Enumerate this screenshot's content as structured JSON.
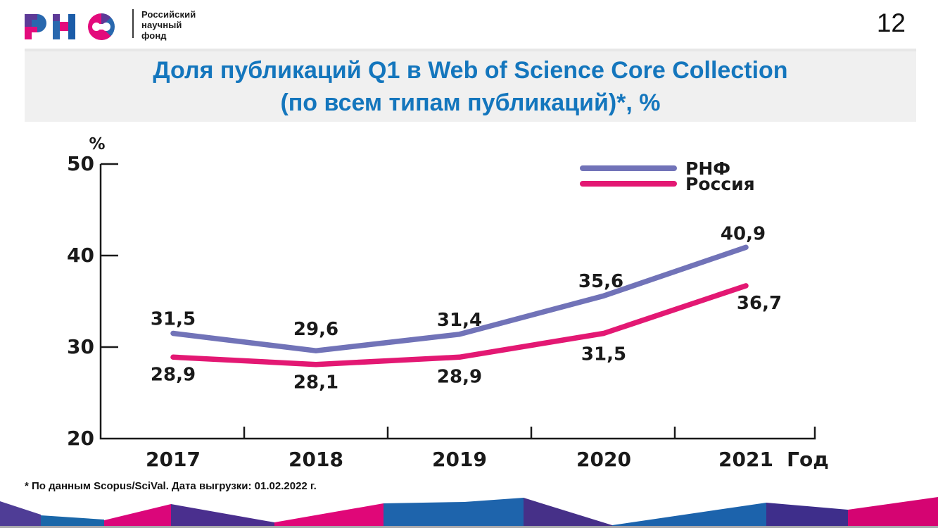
{
  "page": {
    "number": "12"
  },
  "logo": {
    "mark": "РНФ",
    "org_lines": [
      "Российский",
      "научный",
      "фонд"
    ],
    "colors": {
      "pink": "#E30B7C",
      "blue": "#2968AE",
      "purple": "#5D3A97"
    }
  },
  "title": {
    "line1": "Доля публикаций Q1 в Web of Science Core Collection",
    "line2": "(по всем типам публикаций)*, %",
    "color": "#1476BD",
    "band_background": "#F0F0F0"
  },
  "footnote": "* По данным Scopus/SciVal. Дата выгрузки: 01.02.2022 г.",
  "chart_data": {
    "type": "line",
    "title": "Доля публикаций Q1 в Web of Science Core Collection (по всем типам публикаций)*, %",
    "x": [
      2017,
      2018,
      2019,
      2020,
      2021
    ],
    "xlabel": "Год",
    "ylabel": "%",
    "ylim": [
      20,
      50
    ],
    "yticks": [
      20,
      30,
      40,
      50
    ],
    "grid": false,
    "legend_position": "top-right",
    "decimal_separator": ",",
    "series": [
      {
        "name": "РНФ",
        "color": "#7173B8",
        "values": [
          31.5,
          29.6,
          31.4,
          35.6,
          40.9
        ]
      },
      {
        "name": "Россия",
        "color": "#E31873",
        "values": [
          28.9,
          28.1,
          28.9,
          31.5,
          36.7
        ]
      }
    ]
  },
  "decor": {
    "band_colors": [
      "#4F3D96",
      "#1A67A9",
      "#DB067A",
      "#4A2F8E",
      "#E00778",
      "#1E64AC",
      "#463088",
      "#1C63AC",
      "#3E2E8B",
      "#D50472"
    ],
    "baseline_color": "#A9A9AD"
  }
}
